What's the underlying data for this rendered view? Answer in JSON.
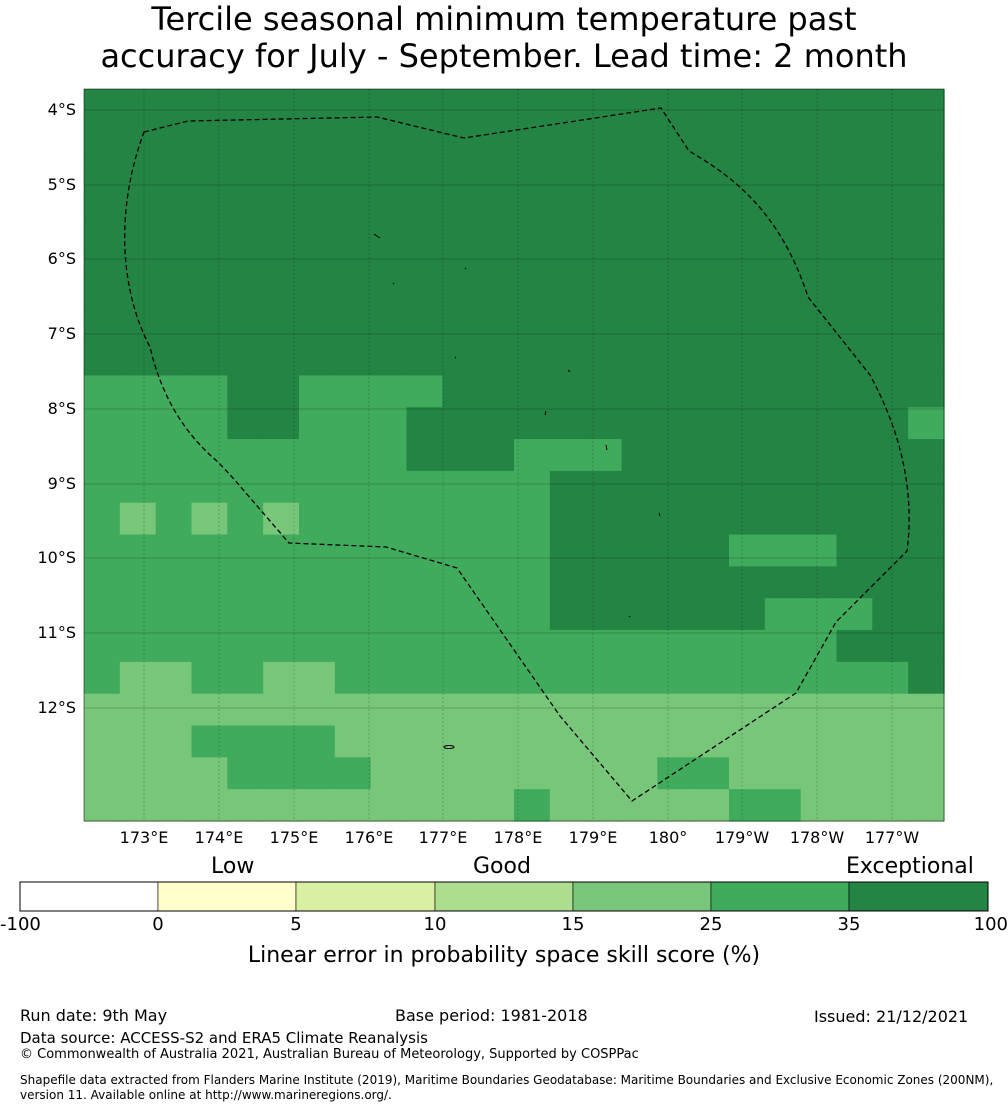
{
  "title": {
    "line1": "Tercile seasonal minimum temperature past",
    "line2": "accuracy for July - September. Lead time: 2 month"
  },
  "map": {
    "lat_labels": [
      "4°S",
      "5°S",
      "6°S",
      "7°S",
      "8°S",
      "9°S",
      "10°S",
      "11°S",
      "12°S"
    ],
    "lon_labels": [
      "173°E",
      "174°E",
      "175°E",
      "176°E",
      "177°E",
      "178°E",
      "179°E",
      "180°",
      "179°W",
      "178°W",
      "177°W"
    ],
    "grid": [
      "666666666666666666666666",
      "666666666666666666666666",
      "666666666666666666666666",
      "666666666666666666666666",
      "666666666666666666666666",
      "666666666666666666666666",
      "666666666666666666666666",
      "666666666666666666666666",
      "666666666666666666666666",
      "555566555566666666666666",
      "555566555666666666666665",
      "555555555666555666666666",
      "555555555555566666666666",
      "545454555555566666666666",
      "555555555555566666555666",
      "555555555555566666666666",
      "555555555555566666655566",
      "555555555555555555555666",
      "544554455555555555555556",
      "444444444444444444444444",
      "444555544444444444444444",
      "444455554444444455444444",
      "444444444444544444554444"
    ]
  },
  "colorbar": {
    "category_labels": [
      "Low",
      "Good",
      "Exceptional"
    ],
    "ticks": [
      "-100",
      "0",
      "5",
      "10",
      "15",
      "25",
      "35",
      "100"
    ],
    "colors": [
      "#ffffff",
      "#ffffcc",
      "#d9f0a3",
      "#addd8e",
      "#78c679",
      "#41ab5d",
      "#238443"
    ],
    "label": "Linear error in probability space skill score (%)"
  },
  "footer": {
    "run_date": "Run date: 9th May",
    "base_period": "Base period: 1981-2018",
    "issued": "Issued: 21/12/2021",
    "data_source": "Data source: ACCESS-S2 and ERA5 Climate Reanalysis",
    "copyright": "© Commonwealth of Australia 2021, Australian Bureau of Meteorology, Supported by COSPPac",
    "shapefile": "Shapefile data extracted from Flanders Marine Institute (2019), Maritime Boundaries Geodatabase: Maritime Boundaries and Exclusive Economic Zones (200NM), version 11. Available online at http://www.marineregions.org/."
  }
}
